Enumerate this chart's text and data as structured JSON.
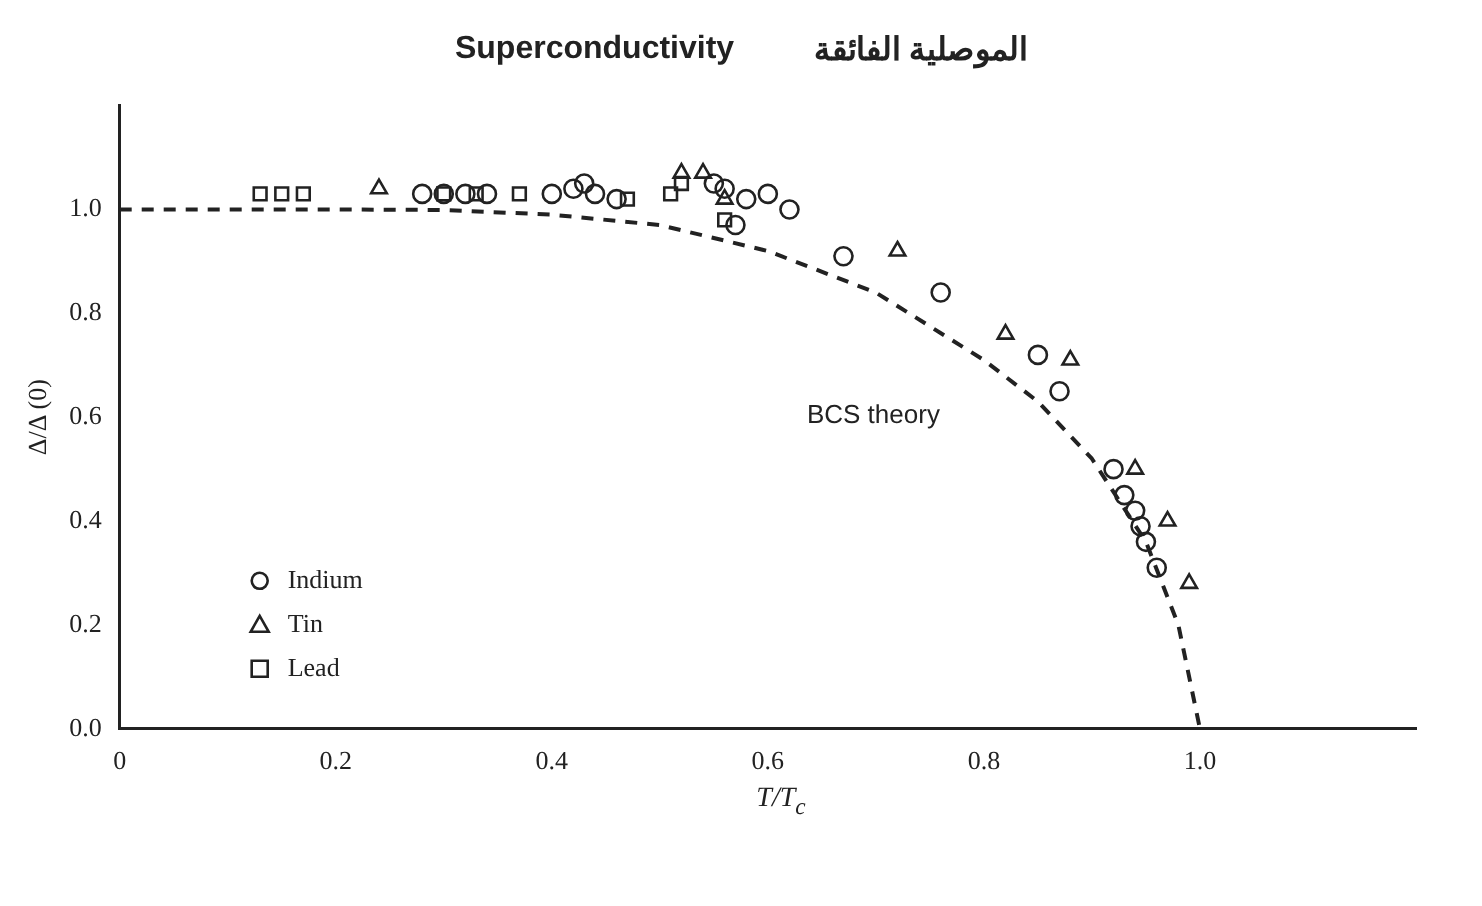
{
  "chart_data": {
    "type": "scatter",
    "title": "Superconductivity",
    "subtitle": "الموصلية الفائقة",
    "xlabel": "T/T$_{c}$",
    "ylabel": "Δ/Δ (0)",
    "xlim": [
      0,
      1.2
    ],
    "ylim": [
      0,
      1.2
    ],
    "xticks": [
      {
        "value": 0,
        "label": "0"
      },
      0.2,
      0.4,
      0.6,
      0.8,
      {
        "value": 1,
        "label": "1.0"
      }
    ],
    "yticks": [
      {
        "value": 0,
        "label": "0.0"
      },
      0.2,
      0.4,
      0.6,
      0.8,
      {
        "value": 1,
        "label": "1.0"
      }
    ],
    "grid": false,
    "legend": "bottom left",
    "series": [
      {
        "name": "Indium",
        "marker": "circle",
        "color": "#222222",
        "x": [
          0.28,
          0.3,
          0.32,
          0.34,
          0.4,
          0.42,
          0.43,
          0.44,
          0.46,
          0.55,
          0.56,
          0.57,
          0.58,
          0.6,
          0.62,
          0.67,
          0.76,
          0.85,
          0.87,
          0.92,
          0.93,
          0.94,
          0.945,
          0.95,
          0.96
        ],
        "values": [
          1.03,
          1.03,
          1.03,
          1.03,
          1.03,
          1.04,
          1.05,
          1.03,
          1.02,
          1.05,
          1.04,
          0.97,
          1.02,
          1.03,
          1.0,
          0.91,
          0.84,
          0.72,
          0.65,
          0.5,
          0.45,
          0.42,
          0.39,
          0.36,
          0.31
        ]
      },
      {
        "name": "Tin",
        "marker": "triangle",
        "color": "#222222",
        "x": [
          0.24,
          0.52,
          0.54,
          0.56,
          0.72,
          0.82,
          0.88,
          0.94,
          0.97,
          0.99
        ],
        "values": [
          1.04,
          1.07,
          1.07,
          1.02,
          0.92,
          0.76,
          0.71,
          0.5,
          0.4,
          0.28
        ]
      },
      {
        "name": "Lead",
        "marker": "square",
        "color": "#222222",
        "x": [
          0.13,
          0.15,
          0.17,
          0.3,
          0.33,
          0.37,
          0.47,
          0.51,
          0.52,
          0.56
        ],
        "values": [
          1.03,
          1.03,
          1.03,
          1.03,
          1.03,
          1.03,
          1.02,
          1.03,
          1.05,
          0.98
        ]
      },
      {
        "name": "BCS theory",
        "type": "line",
        "marker": "none",
        "line_style": "dashed",
        "color": "#222222",
        "x": [
          0,
          0.2,
          0.3,
          0.4,
          0.5,
          0.6,
          0.7,
          0.8,
          0.85,
          0.9,
          0.95,
          0.98,
          1.0
        ],
        "values": [
          1.0,
          1.0,
          0.999,
          0.99,
          0.97,
          0.92,
          0.84,
          0.71,
          0.63,
          0.52,
          0.36,
          0.2,
          0
        ]
      }
    ]
  }
}
